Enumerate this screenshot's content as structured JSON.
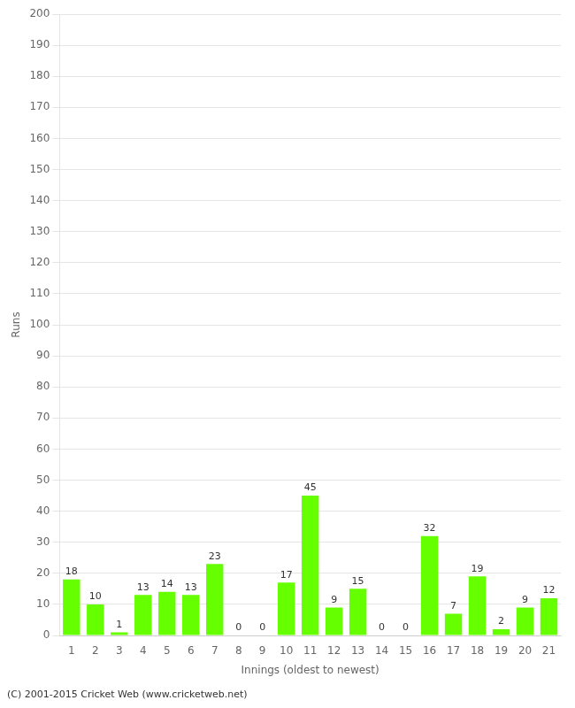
{
  "chart_data": {
    "type": "bar",
    "xlabel": "Innings (oldest to newest)",
    "ylabel": "Runs",
    "categories": [
      1,
      2,
      3,
      4,
      5,
      6,
      7,
      8,
      9,
      10,
      11,
      12,
      13,
      14,
      15,
      16,
      17,
      18,
      19,
      20,
      21
    ],
    "values": [
      18,
      10,
      1,
      13,
      14,
      13,
      23,
      0,
      0,
      17,
      45,
      9,
      15,
      0,
      0,
      32,
      7,
      19,
      2,
      9,
      12
    ],
    "color": "#66ff00",
    "ylim": [
      0,
      200
    ],
    "yticks": [
      0,
      10,
      20,
      30,
      40,
      50,
      60,
      70,
      80,
      90,
      100,
      110,
      120,
      130,
      140,
      150,
      160,
      170,
      180,
      190,
      200
    ],
    "grid": true,
    "data_labels": true,
    "footer": "(C) 2001-2015 Cricket Web (www.cricketweb.net)"
  }
}
